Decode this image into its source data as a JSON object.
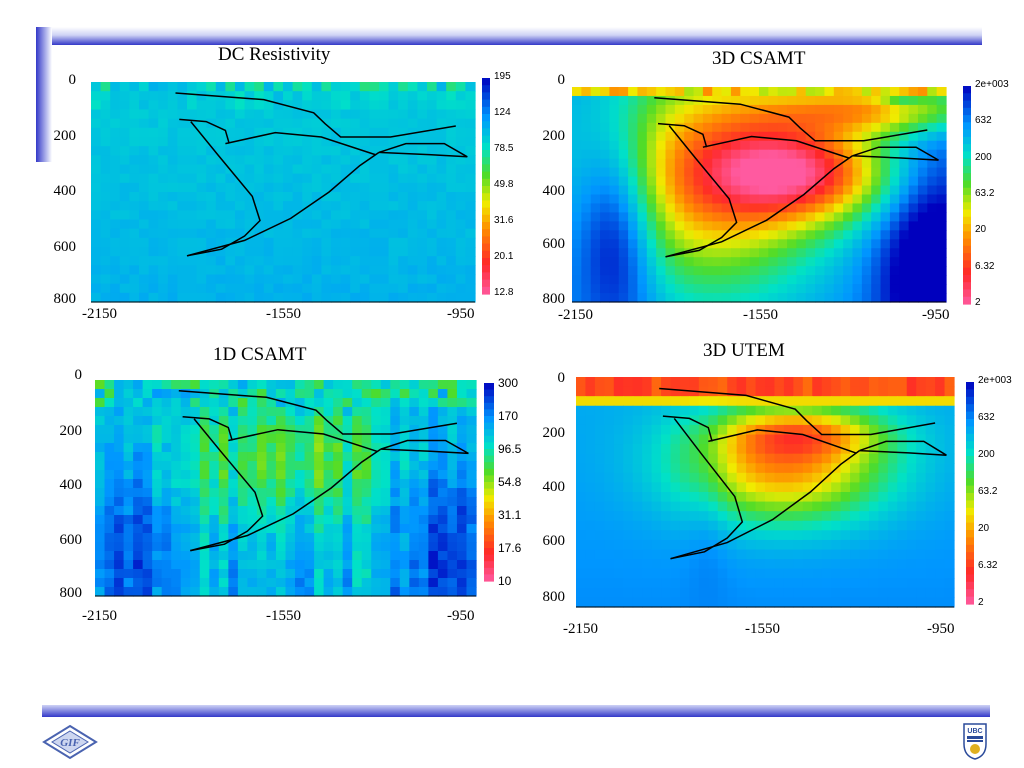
{
  "colors": {
    "accent_bar": "#3338c8",
    "boundary_line": "#000000",
    "logo_gif": "#4a63b0",
    "logo_ubc": "#2a4a9a",
    "logo_ubc_gold": "#e0b020"
  },
  "logos": {
    "left": {
      "icon": "gif-logo-icon",
      "text": "GIF"
    },
    "right": {
      "icon": "ubc-crest-icon",
      "text": "UBC"
    }
  },
  "chart_data": [
    {
      "type": "heatmap",
      "title": "DC Resistivity",
      "x_ticks": [
        "-2150",
        "-1550",
        "-950"
      ],
      "y_ticks": [
        "0",
        "200",
        "400",
        "600",
        "800"
      ],
      "xlim": [
        -2150,
        -950
      ],
      "ylim": [
        0,
        800
      ],
      "colorbar_ticks": [
        "195",
        "124",
        "78.5",
        "49.8",
        "31.6",
        "20.1",
        "12.8"
      ],
      "dominant_value": "78.5"
    },
    {
      "type": "heatmap",
      "title": "3D CSAMT",
      "x_ticks": [
        "-2150",
        "-1550",
        "-950"
      ],
      "y_ticks": [
        "0",
        "200",
        "400",
        "600",
        "800"
      ],
      "xlim": [
        -2150,
        -950
      ],
      "ylim": [
        0,
        800
      ],
      "colorbar_ticks": [
        "2e+003",
        "632",
        "200",
        "63.2",
        "20",
        "6.32",
        "2"
      ]
    },
    {
      "type": "heatmap",
      "title": "1D CSAMT",
      "x_ticks": [
        "-2150",
        "-1550",
        "-950"
      ],
      "y_ticks": [
        "0",
        "200",
        "400",
        "600",
        "800"
      ],
      "xlim": [
        -2150,
        -950
      ],
      "ylim": [
        0,
        800
      ],
      "colorbar_ticks": [
        "300",
        "170",
        "96.5",
        "54.8",
        "31.1",
        "17.6",
        "10"
      ]
    },
    {
      "type": "heatmap",
      "title": "3D UTEM",
      "x_ticks": [
        "-2150",
        "-1550",
        "-950"
      ],
      "y_ticks": [
        "0",
        "200",
        "400",
        "600",
        "800"
      ],
      "xlim": [
        -2150,
        -950
      ],
      "ylim": [
        0,
        800
      ],
      "colorbar_ticks": [
        "2e+003",
        "632",
        "200",
        "63.2",
        "20",
        "6.32",
        "2"
      ]
    }
  ]
}
